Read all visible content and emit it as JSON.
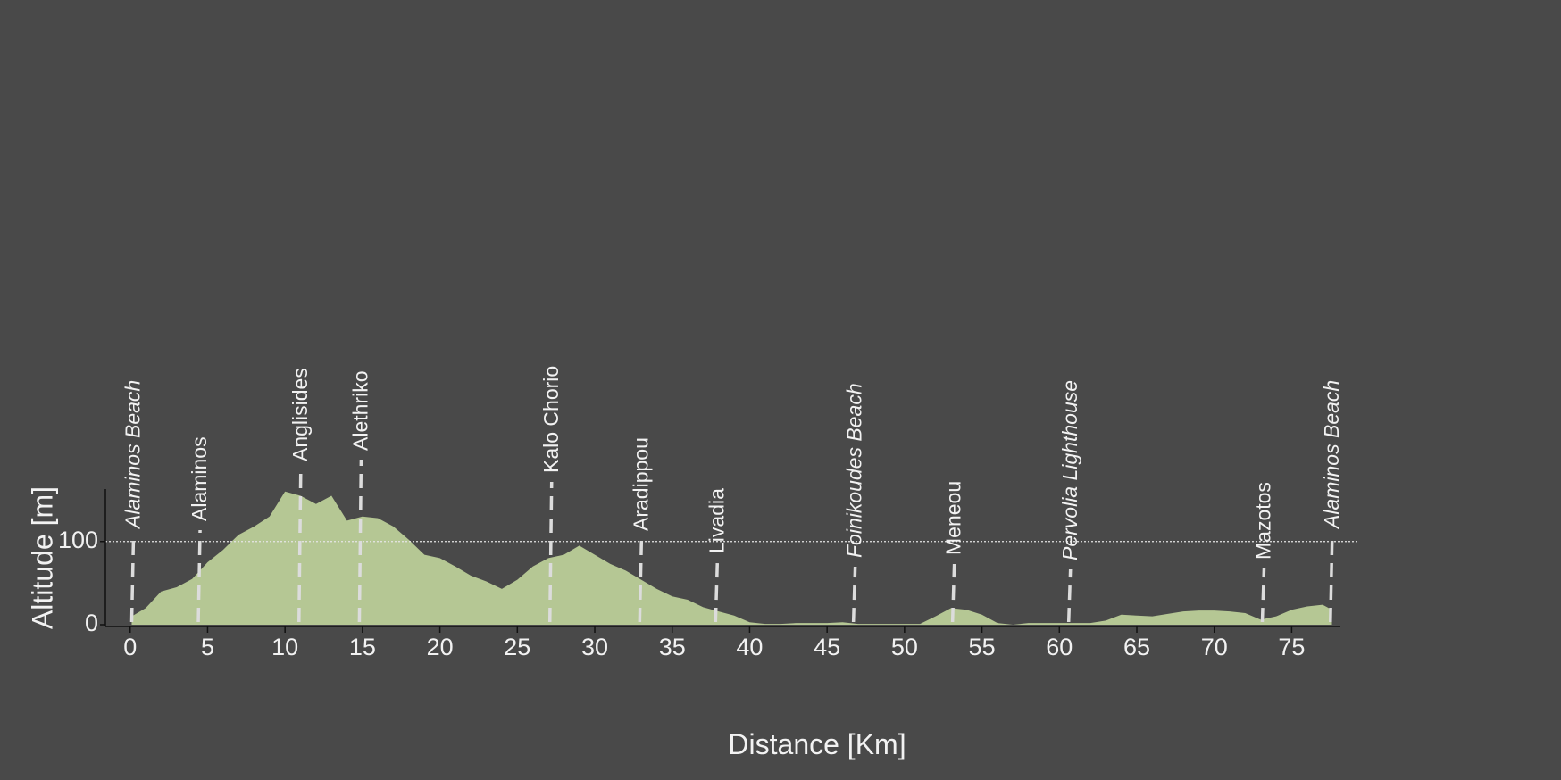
{
  "chart_data": {
    "type": "area",
    "xlabel": "Distance [Km]",
    "ylabel": "Altitude [m]",
    "color": "#b5c794",
    "x": [
      0.1,
      1,
      2,
      3,
      4,
      5,
      6,
      7,
      8,
      9,
      10,
      11,
      12,
      13,
      14,
      15,
      16,
      17,
      18,
      19,
      20,
      21,
      22,
      23,
      24,
      25,
      26,
      27,
      28,
      29,
      30,
      31,
      32,
      33,
      34,
      35,
      36,
      37,
      38,
      39,
      40,
      41,
      42,
      43,
      44,
      45,
      46,
      47,
      48,
      49,
      50,
      51,
      52,
      53,
      54,
      55,
      56,
      57,
      58,
      59,
      60,
      61,
      62,
      63,
      64,
      65,
      66,
      67,
      68,
      69,
      70,
      71,
      72,
      73,
      74,
      75,
      76,
      77,
      77.6
    ],
    "values": [
      10,
      20,
      40,
      45,
      55,
      75,
      90,
      108,
      118,
      130,
      160,
      155,
      145,
      155,
      125,
      130,
      128,
      118,
      102,
      84,
      80,
      70,
      59,
      52,
      43,
      54,
      70,
      80,
      84,
      95,
      84,
      73,
      65,
      54,
      43,
      34,
      30,
      21,
      16,
      11,
      3,
      1,
      1,
      2,
      2,
      2,
      3,
      1,
      1,
      1,
      1,
      1,
      10,
      20,
      18,
      12,
      2,
      0,
      2,
      2,
      2,
      2,
      2,
      5,
      12,
      11,
      10,
      13,
      16,
      17,
      17,
      16,
      14,
      6,
      10,
      18,
      22,
      24,
      18
    ],
    "xlim": [
      -1.6,
      79.3
    ],
    "ylim": [
      0,
      163
    ],
    "xticks": [
      0,
      5,
      10,
      15,
      20,
      25,
      30,
      35,
      40,
      45,
      50,
      55,
      60,
      65,
      70,
      75
    ],
    "yticks": [
      0,
      100
    ],
    "grid_y": [
      100
    ],
    "annotations": [
      {
        "label": "Alaminos Beach",
        "x": 0.1,
        "italic": true
      },
      {
        "label": "Alaminos",
        "x": 4.4,
        "italic": false
      },
      {
        "label": "Anglisides",
        "x": 10.9,
        "italic": false
      },
      {
        "label": "Alethriko",
        "x": 14.8,
        "italic": false
      },
      {
        "label": "Kalo Chorio",
        "x": 27.1,
        "italic": false
      },
      {
        "label": "Aradippou",
        "x": 32.9,
        "italic": false
      },
      {
        "label": "Livadia",
        "x": 37.8,
        "italic": false
      },
      {
        "label": "Foinikoudes Beach",
        "x": 46.7,
        "italic": true
      },
      {
        "label": "Meneou",
        "x": 53.1,
        "italic": false
      },
      {
        "label": "Pervolia Lighthouse",
        "x": 60.6,
        "italic": true
      },
      {
        "label": "Mazotos",
        "x": 73.1,
        "italic": false
      },
      {
        "label": "Alaminos Beach",
        "x": 77.5,
        "italic": true
      }
    ]
  }
}
